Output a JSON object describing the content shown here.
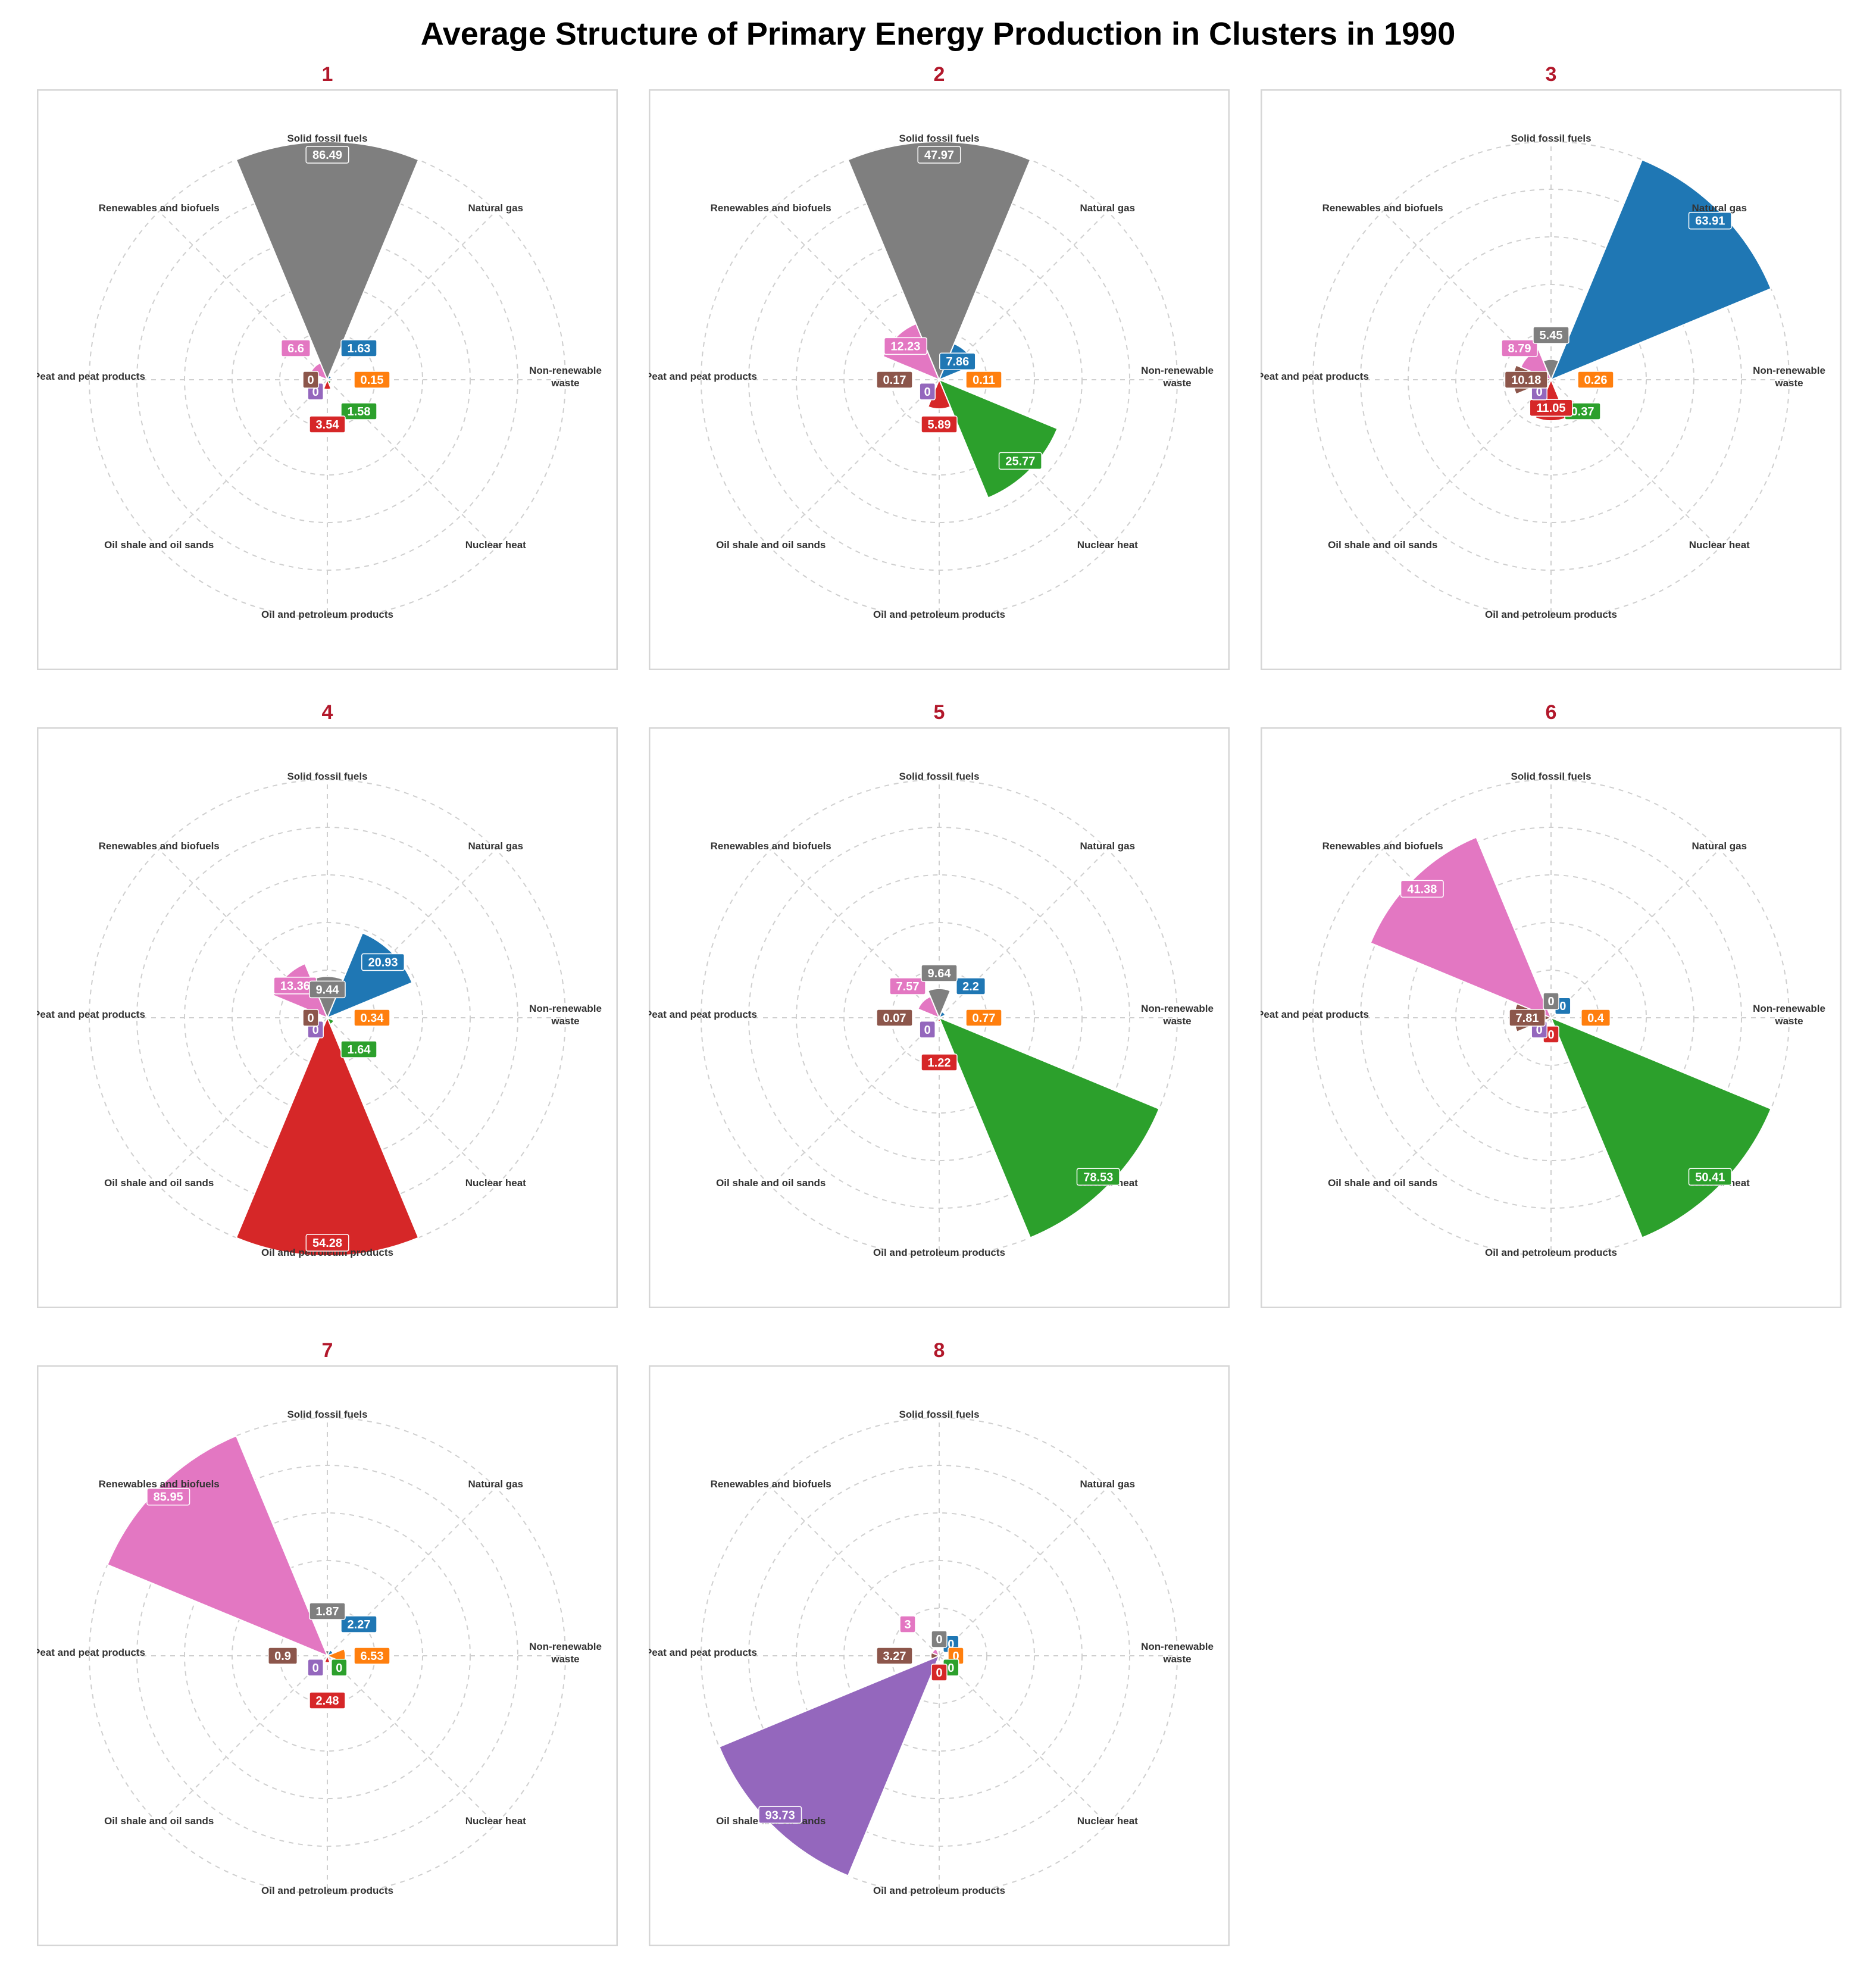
{
  "chart_data": {
    "type": "polar-bar",
    "title": "Average Structure of Primary Energy Production in Clusters in 1990",
    "categories": [
      "Natural gas",
      "Non-renewable waste",
      "Nuclear heat",
      "Oil and petroleum products",
      "Oil shale and oil sands",
      "Peat and peat products",
      "Renewables and biofuels",
      "Solid fossil fuels"
    ],
    "category_labels": [
      "Natural gas",
      "Non-renewable\nwaste",
      "Nuclear heat",
      "Oil and petroleum products",
      "Oil shale and oil sands",
      "Peat and peat products",
      "Renewables and biofuels",
      "Solid fossil fuels"
    ],
    "series_colors": {
      "Natural gas": "#1f77b4",
      "Non-renewable waste": "#ff7f0e",
      "Nuclear heat": "#2ca02c",
      "Oil and petroleum products": "#d62728",
      "Oil shale and oil sands": "#9467bd",
      "Peat and peat products": "#8c564b",
      "Renewables and biofuels": "#e377c2",
      "Solid fossil fuels": "#7f7f7f"
    },
    "clusters": [
      {
        "name": "1",
        "values": [
          1.63,
          0.15,
          1.58,
          3.54,
          0,
          0,
          6.6,
          86.49
        ]
      },
      {
        "name": "2",
        "values": [
          7.86,
          0.11,
          25.77,
          5.89,
          0,
          0.17,
          12.23,
          47.97
        ]
      },
      {
        "name": "3",
        "values": [
          63.91,
          0.26,
          0.37,
          11.05,
          0,
          10.18,
          8.79,
          5.45
        ]
      },
      {
        "name": "4",
        "values": [
          20.93,
          0.34,
          1.64,
          54.28,
          0,
          0,
          13.36,
          9.44
        ]
      },
      {
        "name": "5",
        "values": [
          2.2,
          0.77,
          78.53,
          1.22,
          0,
          0.07,
          7.57,
          9.64
        ]
      },
      {
        "name": "6",
        "values": [
          0,
          0.4,
          50.41,
          0,
          0,
          7.81,
          41.38,
          0
        ]
      },
      {
        "name": "7",
        "values": [
          2.27,
          6.53,
          0,
          2.48,
          0,
          0.9,
          85.95,
          1.87
        ]
      },
      {
        "name": "8",
        "values": [
          0,
          0,
          0,
          0,
          93.73,
          3.27,
          3,
          0
        ]
      }
    ]
  }
}
